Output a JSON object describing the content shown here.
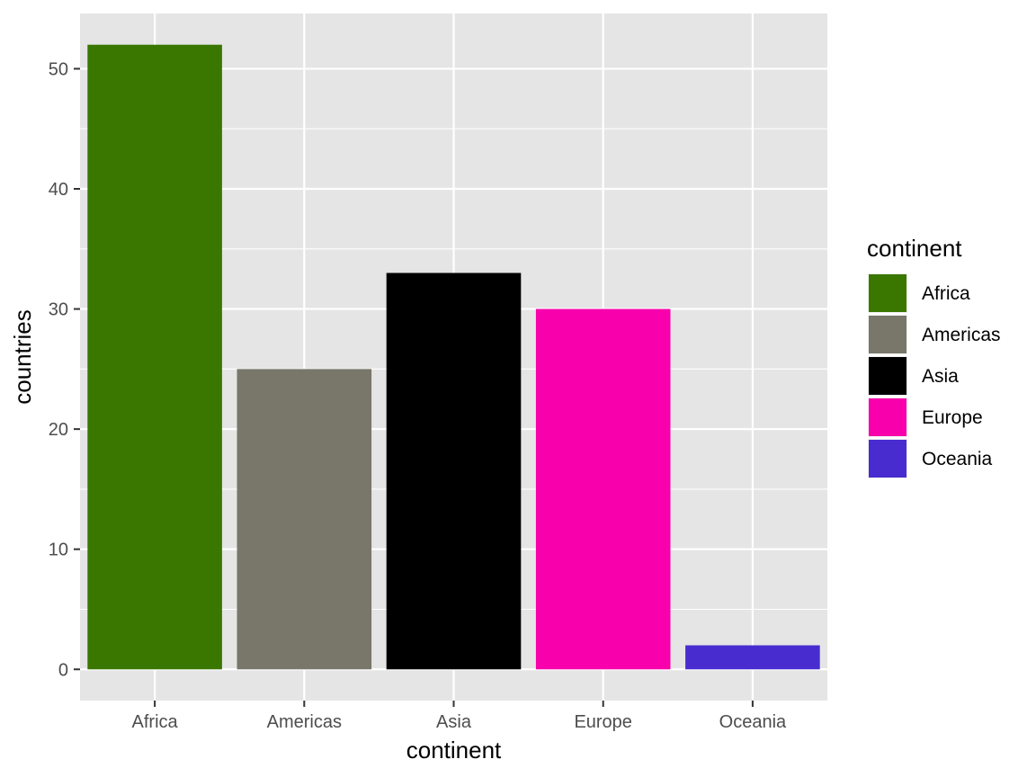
{
  "chart_data": {
    "type": "bar",
    "categories": [
      "Africa",
      "Americas",
      "Asia",
      "Europe",
      "Oceania"
    ],
    "values": [
      52,
      25,
      33,
      30,
      2
    ],
    "colors": [
      "#3A7700",
      "#79776A",
      "#000000",
      "#F800AB",
      "#482CD0"
    ],
    "xlabel": "continent",
    "ylabel": "countries",
    "ylim": [
      -2.6,
      54.6
    ],
    "yticks": [
      0,
      10,
      20,
      30,
      40,
      50
    ],
    "grid": true,
    "legend": {
      "title": "continent",
      "position": "right",
      "items": [
        "Africa",
        "Americas",
        "Asia",
        "Europe",
        "Oceania"
      ]
    }
  }
}
